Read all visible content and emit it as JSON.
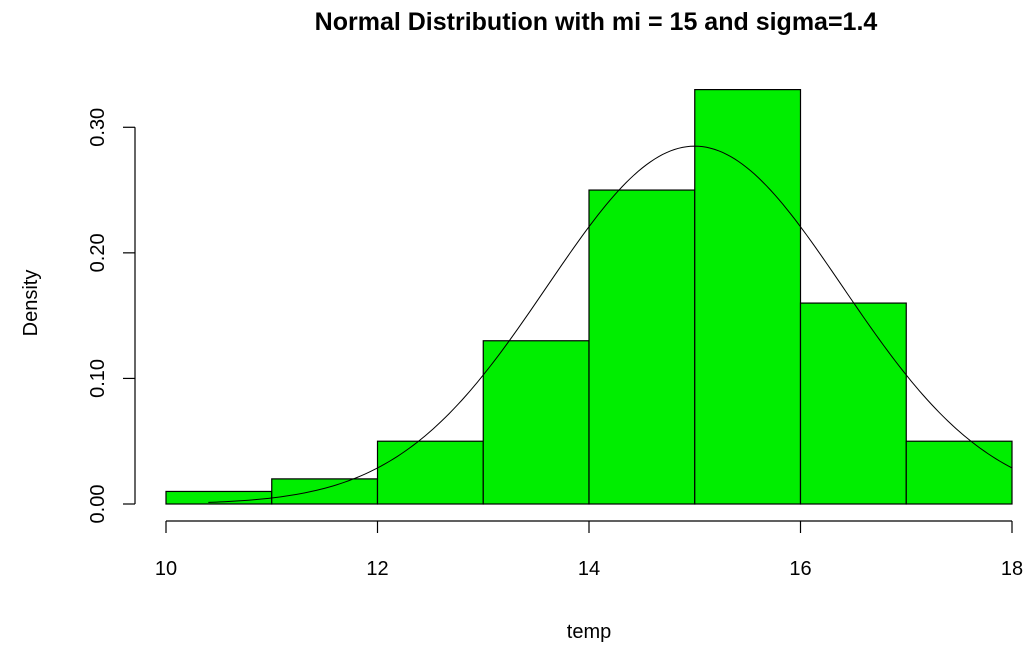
{
  "chart_data": {
    "type": "bar",
    "title": "Normal Distribution with mi = 15 and sigma=1.4",
    "xlabel": "temp",
    "ylabel": "Density",
    "bins": [
      {
        "x0": 10,
        "x1": 11,
        "density": 0.01
      },
      {
        "x0": 11,
        "x1": 12,
        "density": 0.02
      },
      {
        "x0": 12,
        "x1": 13,
        "density": 0.05
      },
      {
        "x0": 13,
        "x1": 14,
        "density": 0.13
      },
      {
        "x0": 14,
        "x1": 15,
        "density": 0.25
      },
      {
        "x0": 15,
        "x1": 16,
        "density": 0.33
      },
      {
        "x0": 16,
        "x1": 17,
        "density": 0.16
      },
      {
        "x0": 17,
        "x1": 18,
        "density": 0.05
      }
    ],
    "normal_curve": {
      "mean": 15,
      "sd": 1.4,
      "x_range": [
        10.4,
        18
      ]
    },
    "xlim": [
      10,
      18
    ],
    "ylim": [
      0,
      0.33
    ],
    "x_ticks": [
      10,
      12,
      14,
      16,
      18
    ],
    "y_ticks": [
      "0.00",
      "0.10",
      "0.20",
      "0.30"
    ],
    "bar_color": "#00ee00",
    "grid": false
  }
}
